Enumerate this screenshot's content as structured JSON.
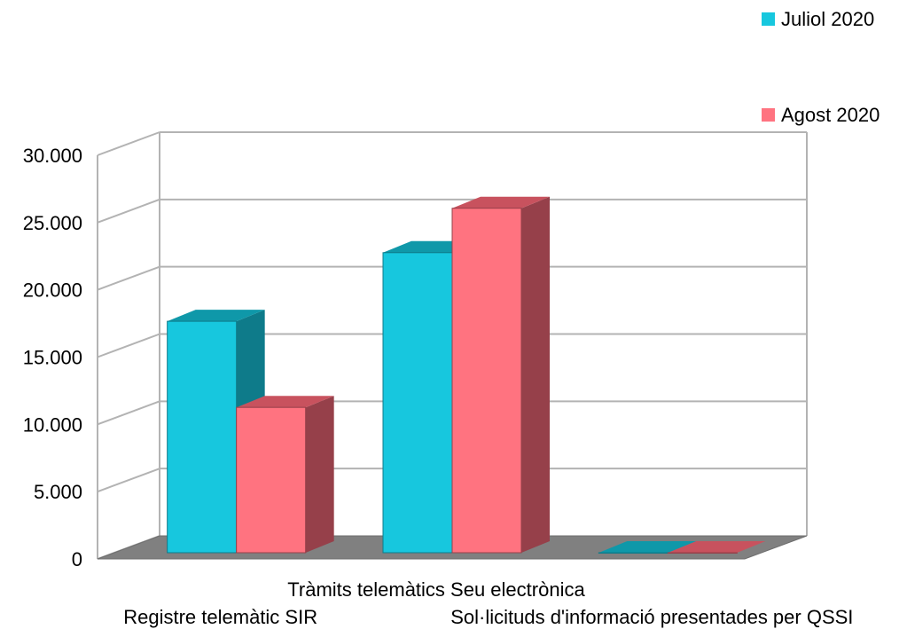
{
  "chart_data": {
    "type": "bar",
    "style": "3d-clustered-column",
    "categories": [
      "Registre telemàtic SIR",
      "Tràmits telemàtics Seu electrònica",
      "Sol·licituds d'informació presentades per QSSI"
    ],
    "series": [
      {
        "name": "Juliol 2020",
        "values": [
          17200,
          22300,
          0
        ],
        "color": "#17c7de",
        "side_color": "#0e7b8a",
        "top_color": "#0f98a9"
      },
      {
        "name": "Agost 2020",
        "values": [
          10800,
          25600,
          0
        ],
        "color": "#ff7380",
        "side_color": "#96404a",
        "top_color": "#c8525e"
      }
    ],
    "ylim": [
      0,
      30000
    ],
    "yticks": [
      0,
      5000,
      10000,
      15000,
      20000,
      25000,
      30000
    ],
    "ytick_labels": [
      "0",
      "5.000",
      "10.000",
      "15.000",
      "20.000",
      "25.000",
      "30.000"
    ],
    "grid": true,
    "legend_position": "top-right",
    "title": "",
    "xlabel": "",
    "ylabel": ""
  }
}
